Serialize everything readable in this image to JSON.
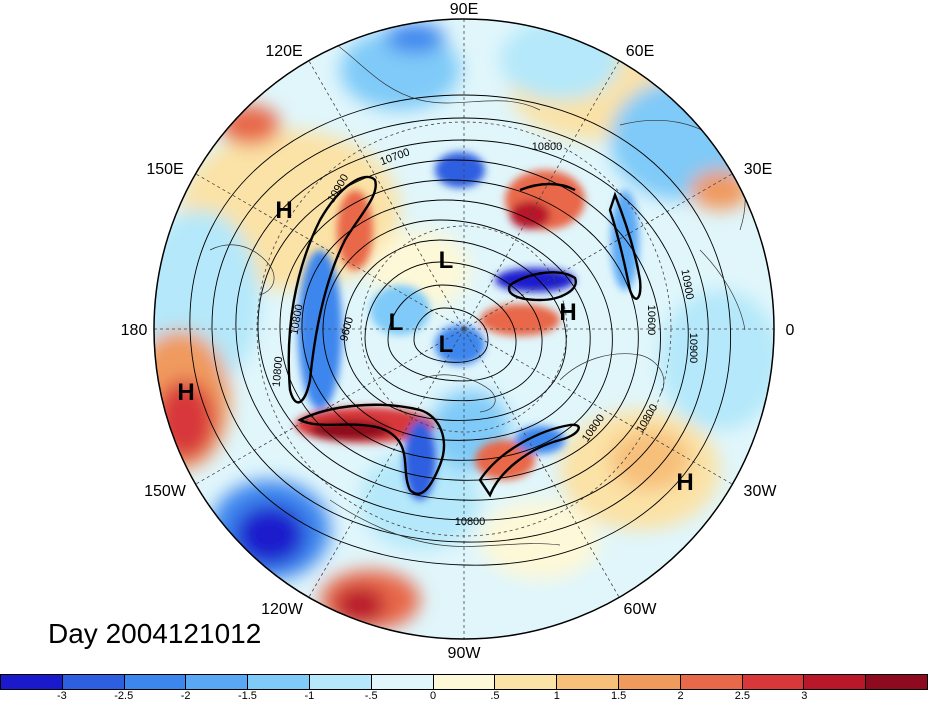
{
  "map": {
    "lon_labels": {
      "n": "90E",
      "nne": "60E",
      "ene": "30E",
      "e": "0",
      "ese": "30W",
      "sse": "60W",
      "s": "90W",
      "ssw": "120W",
      "wsw": "150W",
      "w": "180",
      "wnw": "150E",
      "nnw": "120E"
    },
    "pressure_centers": [
      "H",
      "H",
      "H",
      "H",
      "L",
      "L",
      "L"
    ],
    "contour_labels": [
      "10800",
      "10700",
      "10900",
      "10900",
      "10800",
      "9600",
      "10800",
      "10600",
      "10900",
      "10800",
      "10800",
      "10800",
      "10600"
    ],
    "colors": {
      "land_outline": "#333333",
      "contour": "#000000"
    }
  },
  "title": "Day 2004121012",
  "colorbar": {
    "colors": [
      "#1a1acc",
      "#2e5fe0",
      "#3d86ee",
      "#5aa8f5",
      "#7fcaf8",
      "#b4e8fa",
      "#e0f6fb",
      "#fdf8d8",
      "#fbe2a6",
      "#f7c07a",
      "#f09a5e",
      "#e8684a",
      "#d8383a",
      "#b8182a",
      "#8e0a1e"
    ],
    "labels": [
      "-3",
      "-2.5",
      "-2",
      "-1.5",
      "-1",
      "-.5",
      "0",
      ".5",
      "1",
      "1.5",
      "2",
      "2.5",
      "3"
    ]
  }
}
